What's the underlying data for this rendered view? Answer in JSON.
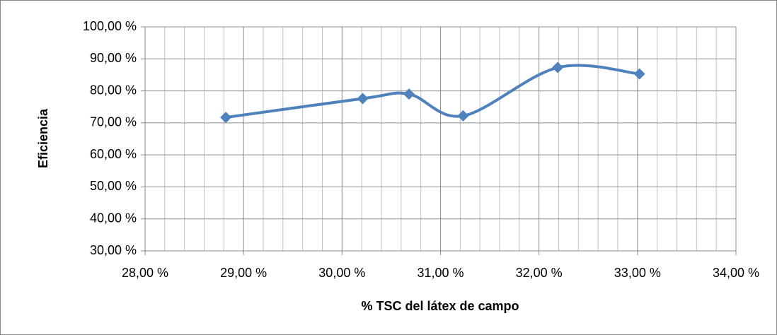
{
  "chart_data": {
    "type": "scatter",
    "x_label": "% TSC del látex de campo",
    "y_label": "Eficiencia",
    "series": [
      {
        "color": "#4f81bd",
        "x": [
          28.82,
          30.21,
          30.68,
          31.23,
          32.19,
          33.02
        ],
        "values": [
          71.7,
          77.6,
          79.0,
          72.2,
          87.3,
          85.3
        ]
      }
    ],
    "smooth": true,
    "xlim": [
      28,
      34
    ],
    "xticks": [
      {
        "value": 28,
        "label": "28,00 %"
      },
      {
        "value": 29,
        "label": "29,00 %"
      },
      {
        "value": 30,
        "label": "30,00 %"
      },
      {
        "value": 31,
        "label": "31,00 %"
      },
      {
        "value": 32,
        "label": "32,00 %"
      },
      {
        "value": 33,
        "label": "33,00 %"
      },
      {
        "value": 34,
        "label": "34,00 %"
      }
    ],
    "ylim": [
      30,
      100
    ],
    "yticks": [
      {
        "value": 30,
        "label": "30,00 %"
      },
      {
        "value": 40,
        "label": "40,00 %"
      },
      {
        "value": 50,
        "label": "50,00 %"
      },
      {
        "value": 60,
        "label": "60,00 %"
      },
      {
        "value": 70,
        "label": "70,00 %"
      },
      {
        "value": 80,
        "label": "80,00 %"
      },
      {
        "value": 90,
        "label": "90,00 %"
      },
      {
        "value": 100,
        "label": "100,00 %"
      }
    ],
    "grid": true
  }
}
